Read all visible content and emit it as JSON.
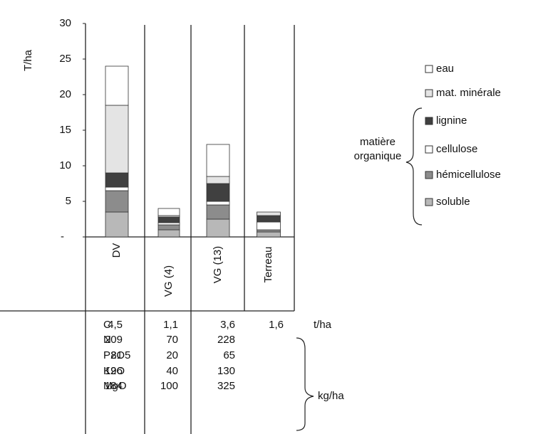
{
  "chart_data": {
    "type": "stacked_bar",
    "y_label": "T/ha",
    "categories": [
      "DV",
      "VG (4)",
      "VG (13)",
      "Terreau"
    ],
    "series": [
      {
        "name": "soluble",
        "color": "#b8b8b8",
        "values": [
          3.5,
          1,
          2.5,
          0.7
        ]
      },
      {
        "name": "hémicellulose",
        "color": "#8c8c8c",
        "values": [
          3,
          0.7,
          2,
          0.3
        ]
      },
      {
        "name": "cellulose",
        "color": "#ffffff",
        "values": [
          0.5,
          0.3,
          0.5,
          1.1
        ]
      },
      {
        "name": "lignine",
        "color": "#404040",
        "values": [
          2,
          0.8,
          2.5,
          0.9
        ]
      },
      {
        "name": "mat. minérale",
        "color": "#e4e4e4",
        "values": [
          9.5,
          0.2,
          1,
          0.5
        ]
      },
      {
        "name": "eau",
        "color": "#ffffff",
        "values": [
          5.5,
          1,
          4.5,
          0
        ]
      }
    ],
    "group_label": [
      "matière",
      "organique"
    ],
    "ylim": [
      0,
      30
    ],
    "yticks": [
      {
        "value": 0,
        "label": "-"
      },
      5,
      10,
      15,
      20,
      25,
      30
    ]
  },
  "table": {
    "rows": [
      {
        "label": "C",
        "values": [
          "4,5",
          "1,1",
          "3,6",
          "1,6"
        ]
      },
      {
        "label": "N",
        "values": [
          "209",
          "70",
          "228"
        ]
      },
      {
        "label": "P2O5",
        "values": [
          "81",
          "20",
          "65"
        ]
      },
      {
        "label": "K2O",
        "values": [
          "196",
          "40",
          "130"
        ]
      },
      {
        "label": "MgO",
        "values": [
          "184",
          "100",
          "325"
        ]
      }
    ],
    "units": [
      "t/ha",
      "kg/ha"
    ]
  }
}
